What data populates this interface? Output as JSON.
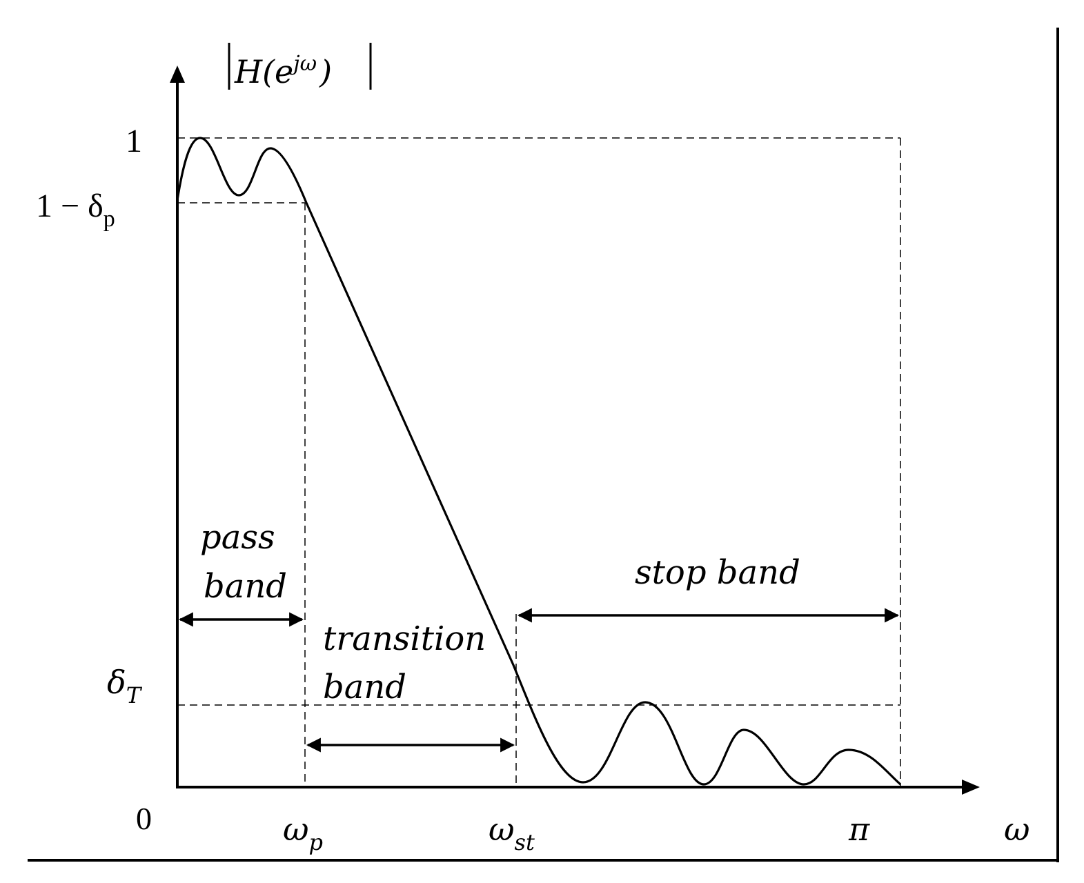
{
  "title": "|H(e^jω)|",
  "y_axis": {
    "title_base": "H(e",
    "title_sup": "jω",
    "title_close": ")",
    "ticks": {
      "one": "1",
      "one_minus_delta_p": {
        "base": "1 − δ",
        "sub": "p"
      },
      "delta_T": {
        "base": "δ",
        "sub": "T"
      },
      "zero": "0"
    }
  },
  "x_axis": {
    "label": "ω",
    "ticks": {
      "omega_p": {
        "base": "ω",
        "sub": "p"
      },
      "omega_st": {
        "base": "ω",
        "sub": "st"
      },
      "pi": "π"
    }
  },
  "bands": {
    "pass": {
      "line1": "pass",
      "line2": "band"
    },
    "transition": {
      "line1": "transition",
      "line2": "band"
    },
    "stop": {
      "line1": "stop band"
    }
  },
  "chart_data": {
    "type": "line",
    "title": "|H(e^jω)|",
    "xlabel": "ω",
    "ylabel": "|H(e^jω)|",
    "x_ticks": [
      "ωp",
      "ωst",
      "π"
    ],
    "y_ticks": [
      "0",
      "δT",
      "1 − δp",
      "1"
    ],
    "grid": false,
    "series": [
      {
        "values": []
      }
    ]
  }
}
